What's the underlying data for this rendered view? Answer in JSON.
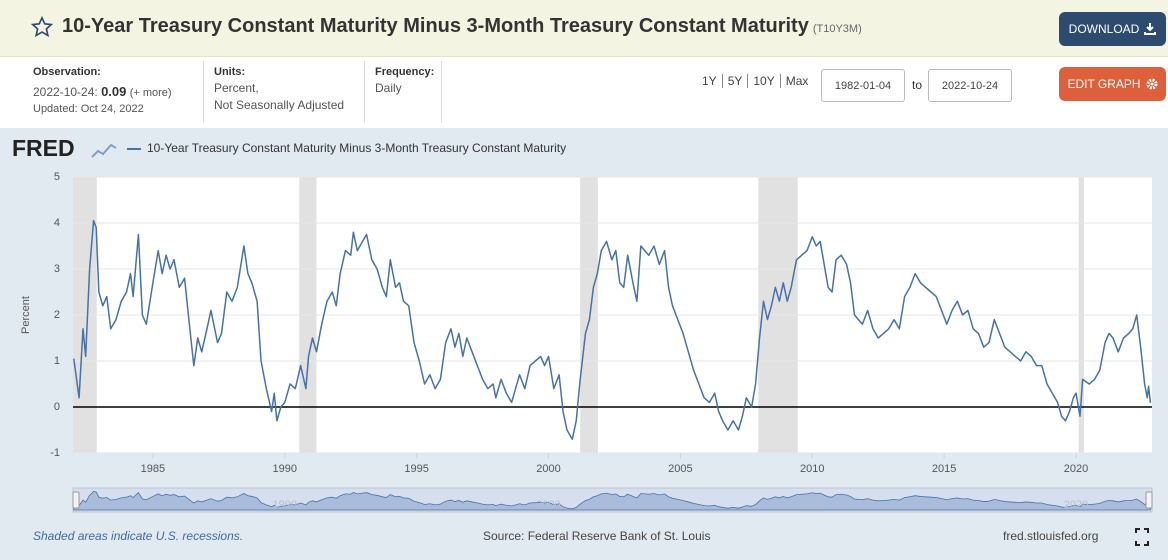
{
  "header": {
    "title": "10-Year Treasury Constant Maturity Minus 3-Month Treasury Constant Maturity",
    "series_id": "(T10Y3M)",
    "download": "DOWNLOAD"
  },
  "info": {
    "observation_label": "Observation:",
    "observation_date": "2022-10-24:",
    "observation_value": 0.09,
    "more": "(+ more)",
    "updated": "Updated: Oct 24, 2022",
    "units_label": "Units:",
    "units": [
      "Percent,",
      "Not Seasonally Adjusted"
    ],
    "frequency_label": "Frequency:",
    "frequency": "Daily"
  },
  "controls": {
    "ranges": [
      "1Y",
      "5Y",
      "10Y",
      "Max"
    ],
    "start_date": "1982-01-04",
    "to": "to",
    "end_date": "2022-10-24",
    "edit": "EDIT GRAPH"
  },
  "chart_data": {
    "type": "line",
    "logo": "FRED",
    "y_label": "Percent",
    "x": [
      1982.0,
      1982.2,
      1982.35,
      1982.45,
      1982.6,
      1982.75,
      1982.85,
      1982.95,
      1983.1,
      1983.25,
      1983.4,
      1983.6,
      1983.8,
      1984.0,
      1984.15,
      1984.25,
      1984.45,
      1984.6,
      1984.75,
      1985.0,
      1985.2,
      1985.35,
      1985.5,
      1985.65,
      1985.8,
      1986.0,
      1986.2,
      1986.4,
      1986.55,
      1986.7,
      1986.85,
      1987.05,
      1987.2,
      1987.45,
      1987.6,
      1987.8,
      1988.0,
      1988.2,
      1988.45,
      1988.6,
      1988.75,
      1988.95,
      1989.1,
      1989.3,
      1989.5,
      1989.6,
      1989.7,
      1989.85,
      1990.0,
      1990.2,
      1990.4,
      1990.6,
      1990.8,
      1990.9,
      1991.05,
      1991.2,
      1991.4,
      1991.6,
      1991.8,
      1991.95,
      1992.1,
      1992.3,
      1992.5,
      1992.6,
      1992.75,
      1992.95,
      1993.1,
      1993.3,
      1993.5,
      1993.7,
      1993.85,
      1994.0,
      1994.2,
      1994.35,
      1994.5,
      1994.7,
      1994.9,
      1995.1,
      1995.3,
      1995.5,
      1995.7,
      1995.9,
      1996.1,
      1996.3,
      1996.45,
      1996.6,
      1996.75,
      1996.9,
      1997.1,
      1997.3,
      1997.5,
      1997.7,
      1997.9,
      1998.0,
      1998.2,
      1998.4,
      1998.6,
      1998.75,
      1998.9,
      1999.1,
      1999.3,
      1999.5,
      1999.7,
      1999.85,
      2000.0,
      2000.2,
      2000.4,
      2000.55,
      2000.7,
      2000.9,
      2001.05,
      2001.2,
      2001.4,
      2001.55,
      2001.7,
      2001.85,
      2002.0,
      2002.2,
      2002.4,
      2002.55,
      2002.7,
      2002.85,
      2003.0,
      2003.2,
      2003.35,
      2003.5,
      2003.65,
      2003.8,
      2004.0,
      2004.2,
      2004.4,
      2004.55,
      2004.7,
      2004.9,
      2005.1,
      2005.3,
      2005.5,
      2005.7,
      2005.9,
      2006.1,
      2006.3,
      2006.45,
      2006.6,
      2006.8,
      2007.0,
      2007.2,
      2007.35,
      2007.5,
      2007.7,
      2007.85,
      2008.0,
      2008.15,
      2008.3,
      2008.45,
      2008.6,
      2008.75,
      2008.9,
      2009.05,
      2009.2,
      2009.4,
      2009.6,
      2009.8,
      2010.0,
      2010.15,
      2010.3,
      2010.45,
      2010.6,
      2010.75,
      2010.9,
      2011.1,
      2011.3,
      2011.45,
      2011.6,
      2011.75,
      2011.9,
      2012.1,
      2012.3,
      2012.5,
      2012.7,
      2012.9,
      2013.1,
      2013.3,
      2013.5,
      2013.7,
      2013.9,
      2014.1,
      2014.3,
      2014.5,
      2014.7,
      2014.9,
      2015.1,
      2015.3,
      2015.5,
      2015.7,
      2015.9,
      2016.1,
      2016.3,
      2016.5,
      2016.7,
      2016.9,
      2017.1,
      2017.3,
      2017.5,
      2017.7,
      2017.9,
      2018.1,
      2018.3,
      2018.5,
      2018.7,
      2018.9,
      2019.1,
      2019.3,
      2019.45,
      2019.6,
      2019.75,
      2019.9,
      2020.0,
      2020.15,
      2020.25,
      2020.5,
      2020.7,
      2020.9,
      2021.1,
      2021.25,
      2021.4,
      2021.6,
      2021.8,
      2022.0,
      2022.15,
      2022.3,
      2022.45,
      2022.6,
      2022.7,
      2022.75,
      2022.82
    ],
    "series": [
      {
        "name": "10-Year Treasury Constant Maturity Minus 3-Month Treasury Constant Maturity",
        "color": "#4572a7",
        "values": [
          1.05,
          0.2,
          1.7,
          1.1,
          3.0,
          4.05,
          3.9,
          2.5,
          2.2,
          2.4,
          1.7,
          1.9,
          2.3,
          2.5,
          2.9,
          2.4,
          3.75,
          2.0,
          1.8,
          2.7,
          3.4,
          2.9,
          3.3,
          3.0,
          3.2,
          2.6,
          2.8,
          1.7,
          0.9,
          1.5,
          1.2,
          1.7,
          2.1,
          1.4,
          1.6,
          2.5,
          2.3,
          2.6,
          3.5,
          2.9,
          2.7,
          2.3,
          1.0,
          0.4,
          -0.1,
          0.3,
          -0.3,
          0.0,
          0.1,
          0.5,
          0.4,
          0.9,
          0.4,
          1.1,
          1.5,
          1.2,
          1.8,
          2.3,
          2.5,
          2.2,
          2.9,
          3.4,
          3.3,
          3.8,
          3.4,
          3.6,
          3.75,
          3.2,
          3.0,
          2.6,
          2.4,
          3.2,
          2.6,
          2.7,
          2.3,
          2.2,
          1.4,
          1.0,
          0.5,
          0.7,
          0.4,
          0.6,
          1.4,
          1.7,
          1.3,
          1.6,
          1.1,
          1.5,
          1.2,
          0.9,
          0.6,
          0.4,
          0.5,
          0.2,
          0.6,
          0.3,
          0.1,
          0.4,
          0.7,
          0.4,
          0.9,
          1.0,
          1.1,
          0.9,
          1.1,
          0.4,
          0.7,
          -0.1,
          -0.5,
          -0.7,
          -0.3,
          0.6,
          1.6,
          1.9,
          2.6,
          2.9,
          3.4,
          3.6,
          3.2,
          3.4,
          2.7,
          2.6,
          3.3,
          2.7,
          2.3,
          3.5,
          3.4,
          3.3,
          3.5,
          3.1,
          3.4,
          2.6,
          2.2,
          1.9,
          1.6,
          1.2,
          0.8,
          0.5,
          0.2,
          0.1,
          0.3,
          -0.1,
          -0.3,
          -0.5,
          -0.3,
          -0.5,
          -0.2,
          0.2,
          0.0,
          0.5,
          1.5,
          2.3,
          1.9,
          2.2,
          2.6,
          2.3,
          2.7,
          2.3,
          2.6,
          3.2,
          3.3,
          3.4,
          3.7,
          3.5,
          3.6,
          3.1,
          2.6,
          2.5,
          3.2,
          3.3,
          3.1,
          2.7,
          2.0,
          1.9,
          1.8,
          2.1,
          1.7,
          1.5,
          1.6,
          1.7,
          1.9,
          1.7,
          2.4,
          2.6,
          2.9,
          2.7,
          2.6,
          2.5,
          2.4,
          2.1,
          1.8,
          2.1,
          2.3,
          2.0,
          2.1,
          1.7,
          1.6,
          1.3,
          1.4,
          1.9,
          1.6,
          1.3,
          1.2,
          1.1,
          1.0,
          1.2,
          1.1,
          0.9,
          0.9,
          0.5,
          0.3,
          0.1,
          -0.2,
          -0.3,
          -0.1,
          0.2,
          0.3,
          -0.2,
          0.6,
          0.5,
          0.6,
          0.8,
          1.4,
          1.6,
          1.5,
          1.2,
          1.5,
          1.6,
          1.7,
          2.0,
          1.3,
          0.5,
          0.2,
          0.45,
          0.09
        ]
      }
    ],
    "xlim": [
      1981.97,
      2022.88
    ],
    "ylim": [
      -1,
      5
    ],
    "xticks": [
      1985,
      1990,
      1995,
      2000,
      2005,
      2010,
      2015,
      2020
    ],
    "yticks": [
      -1,
      0,
      1,
      2,
      3,
      4,
      5
    ],
    "grid": true,
    "recessions": [
      [
        1981.5,
        1982.87
      ],
      [
        1990.55,
        1991.2
      ],
      [
        2001.2,
        2001.87
      ],
      [
        2007.95,
        2009.45
      ],
      [
        2020.1,
        2020.3
      ]
    ],
    "navigator_ticks": [
      1990,
      2000,
      2010,
      2020
    ]
  },
  "footer": {
    "note": "Shaded areas indicate U.S. recessions.",
    "source": "Source: Federal Reserve Bank of St. Louis",
    "site": "fred.stlouisfed.org"
  }
}
